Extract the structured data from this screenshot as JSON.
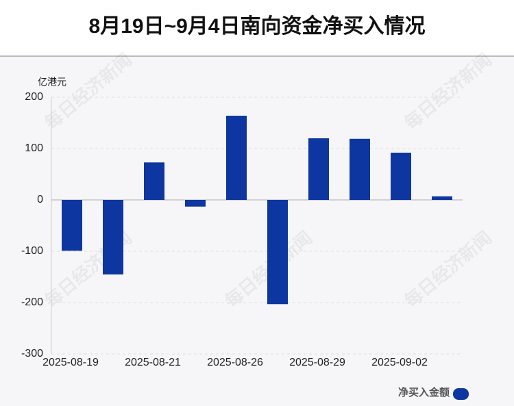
{
  "chart_data": {
    "type": "bar",
    "title": "8月19日~9月4日南向资金净买入情况",
    "y_label": "亿港元",
    "categories": [
      "2025-08-19",
      null,
      "2025-08-21",
      null,
      "2025-08-26",
      null,
      "2025-08-29",
      null,
      "2025-09-02",
      null
    ],
    "series": [
      {
        "name": "净买入金额",
        "color": "#0d36a0",
        "values": [
          -99,
          -145,
          73,
          -13,
          164,
          -203,
          120,
          119,
          92,
          7
        ]
      }
    ],
    "ylim": [
      -300,
      200
    ],
    "yticks": [
      -300,
      -200,
      -100,
      0,
      100,
      200
    ],
    "grid": true,
    "legend": "bottom-right",
    "watermark": "每日经济新闻"
  }
}
